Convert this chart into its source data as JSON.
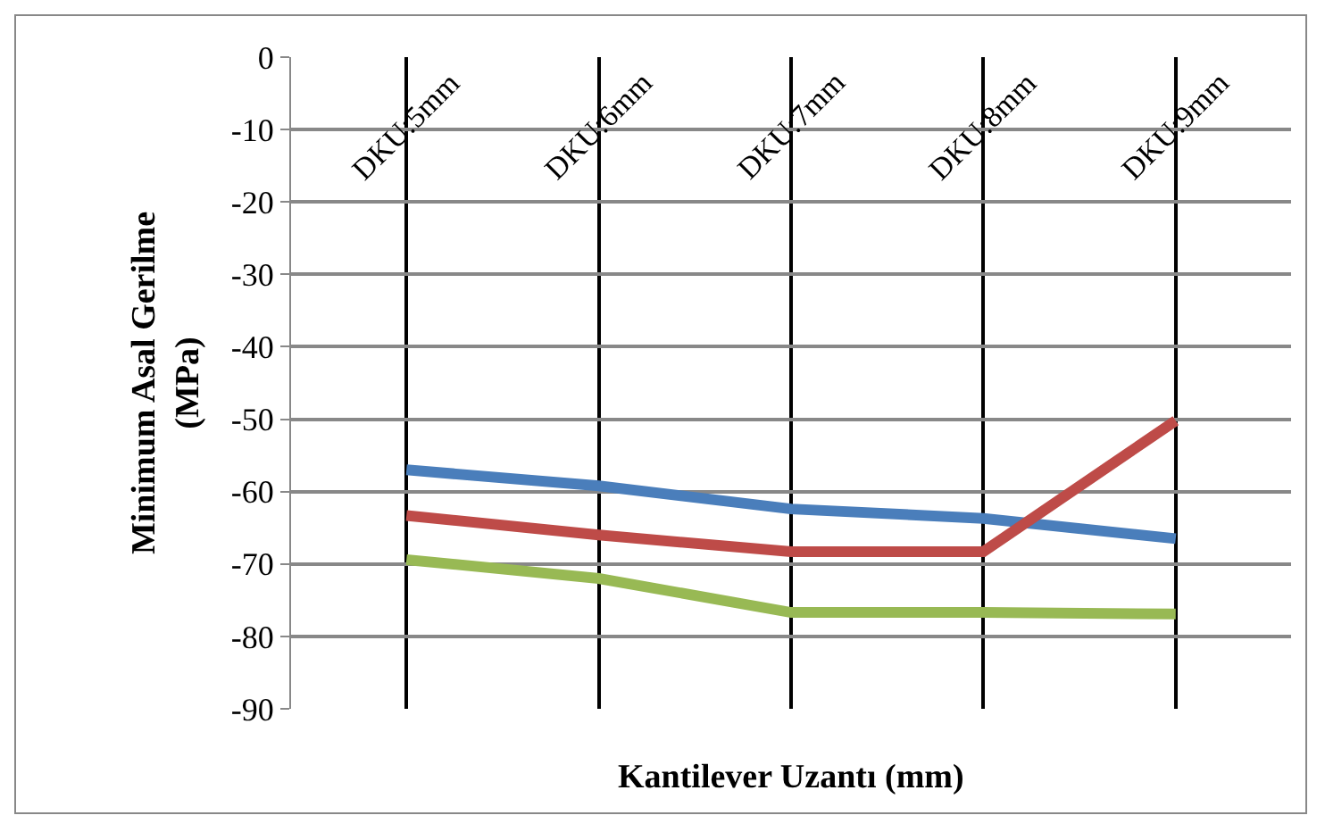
{
  "chart_data": {
    "type": "line",
    "xlabel": "Kantilever Uzantı (mm)",
    "ylabel": "Minimum Asal Gerilme (MPa)",
    "categories": [
      "DKU:5mm",
      "DKU:6mm",
      "DKU:7mm",
      "DKU:8mm",
      "DKU:9mm"
    ],
    "series": [
      {
        "color": "#4a7ebb",
        "values": [
          -57.0,
          -59.2,
          -62.4,
          -63.7,
          -66.5
        ]
      },
      {
        "color": "#be4b48",
        "values": [
          -63.3,
          -66.0,
          -68.3,
          -68.3,
          -50.2
        ]
      },
      {
        "color": "#98b954",
        "values": [
          -69.4,
          -72.0,
          -76.7,
          -76.7,
          -76.9
        ]
      }
    ],
    "ylim": [
      -90,
      0
    ],
    "yticks": [
      0,
      -10,
      -20,
      -30,
      -40,
      -50,
      -60,
      -70,
      -80,
      -90
    ],
    "grid": true,
    "marker": "none",
    "line_style": "solid"
  }
}
